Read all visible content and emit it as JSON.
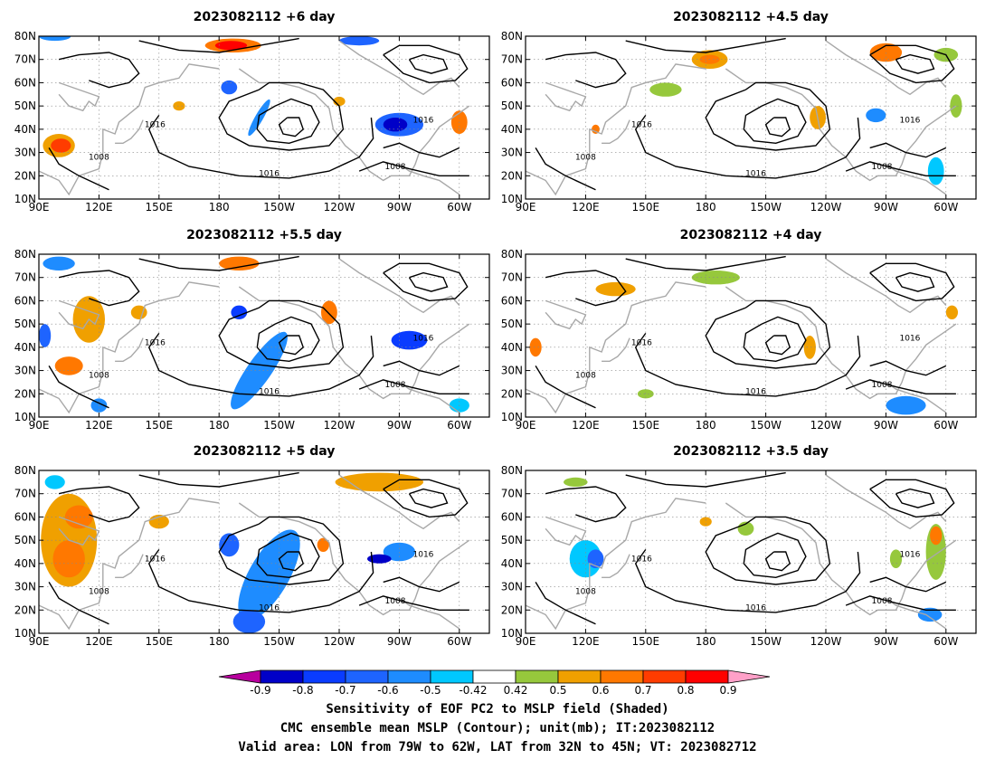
{
  "panels": [
    {
      "title": "2023082112 +6 day",
      "col": 0,
      "row": 0
    },
    {
      "title": "2023082112 +4.5 day",
      "col": 1,
      "row": 0
    },
    {
      "title": "2023082112 +5.5 day",
      "col": 0,
      "row": 1
    },
    {
      "title": "2023082112 +4 day",
      "col": 1,
      "row": 1
    },
    {
      "title": "2023082112 +5 day",
      "col": 0,
      "row": 2
    },
    {
      "title": "2023082112 +3.5 day",
      "col": 1,
      "row": 2
    }
  ],
  "axes": {
    "lat_labels": [
      "80N",
      "70N",
      "60N",
      "50N",
      "40N",
      "30N",
      "20N",
      "10N"
    ],
    "lon_labels": [
      "90E",
      "120E",
      "150E",
      "180",
      "150W",
      "120W",
      "90W",
      "60W"
    ],
    "lon_ticks_deg": [
      90,
      120,
      150,
      180,
      210,
      240,
      270,
      300
    ],
    "lat_ticks_deg": [
      80,
      70,
      60,
      50,
      40,
      30,
      20,
      10
    ],
    "lon_range_deg": [
      90,
      315
    ],
    "lat_range_deg": [
      10,
      80
    ]
  },
  "contour_labels": [
    "1008",
    "1016"
  ],
  "colorbar": {
    "tick_labels": [
      "-0.9",
      "-0.8",
      "-0.7",
      "-0.6",
      "-0.5",
      "-0.42",
      "0.42",
      "0.5",
      "0.6",
      "0.7",
      "0.8",
      "0.9"
    ],
    "colors": [
      "#b8009e",
      "#0000c8",
      "#0a3cff",
      "#1e64ff",
      "#1e8cff",
      "#00c8ff",
      "#ffffff",
      "#96c83c",
      "#f0a000",
      "#ff7800",
      "#ff3c00",
      "#ff0000",
      "#ffa0c8"
    ]
  },
  "caption": {
    "line1": "Sensitivity of EOF PC2 to MSLP field (Shaded)",
    "line2": "CMC ensemble mean MSLP (Contour); unit(mb); IT:2023082112",
    "line3": "Valid area: LON from 79W to 62W, LAT from 32N to 45N; VT: 2023082712"
  }
}
